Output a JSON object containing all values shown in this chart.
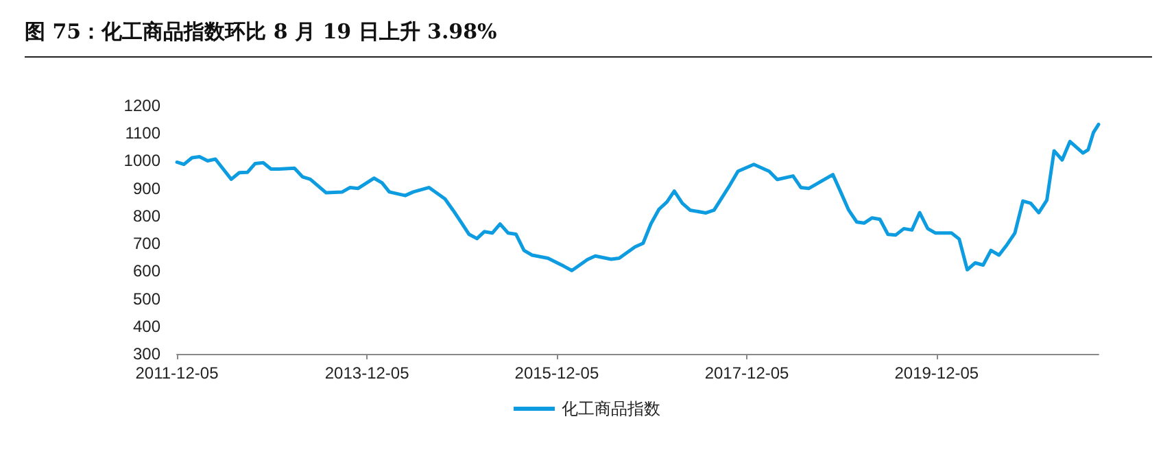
{
  "chart_data": {
    "type": "line",
    "title": "图 75：化工商品指数环比 8 月 19 日上升 3.98%",
    "x": [
      "2011-12-05",
      "2012-01",
      "2012-02",
      "2012-03",
      "2012-04",
      "2012-05",
      "2012-07",
      "2012-08",
      "2012-09",
      "2012-10",
      "2012-11",
      "2012-12",
      "2013-01",
      "2013-03",
      "2013-04",
      "2013-05",
      "2013-07",
      "2013-09",
      "2013-10",
      "2013-11",
      "2014-01",
      "2014-02",
      "2014-03",
      "2014-05",
      "2014-06",
      "2014-08",
      "2014-10",
      "2014-11",
      "2014-12",
      "2015-01",
      "2015-02",
      "2015-03",
      "2015-04",
      "2015-05",
      "2015-06",
      "2015-07",
      "2015-08",
      "2015-09",
      "2015-11",
      "2016-01",
      "2016-02",
      "2016-04",
      "2016-05",
      "2016-07",
      "2016-08",
      "2016-10",
      "2016-11",
      "2016-12",
      "2017-01",
      "2017-02",
      "2017-03",
      "2017-04",
      "2017-05",
      "2017-07",
      "2017-08",
      "2017-10",
      "2017-11",
      "2018-01",
      "2018-03",
      "2018-04",
      "2018-06",
      "2018-07",
      "2018-08",
      "2018-09",
      "2018-11",
      "2018-12",
      "2019-01",
      "2019-02",
      "2019-03",
      "2019-04",
      "2019-05",
      "2019-06",
      "2019-07",
      "2019-08",
      "2019-09",
      "2019-10",
      "2019-11",
      "2019-12",
      "2020-02",
      "2020-03",
      "2020-04",
      "2020-05",
      "2020-06",
      "2020-07",
      "2020-08",
      "2020-09",
      "2020-10",
      "2020-11",
      "2020-12",
      "2021-01",
      "2021-02",
      "2021-03",
      "2021-04",
      "2021-05",
      "2021-06-20",
      "2021-07-10",
      "2021-07-30",
      "2021-08-19"
    ],
    "series": [
      {
        "name": "化工商品指数",
        "color": "#0e9ce0",
        "values": [
          995,
          987,
          1011,
          1015,
          1000,
          1006,
          933,
          957,
          958,
          990,
          993,
          970,
          970,
          973,
          942,
          933,
          884,
          887,
          903,
          900,
          937,
          920,
          887,
          874,
          887,
          903,
          862,
          821,
          779,
          734,
          718,
          743,
          738,
          771,
          738,
          734,
          675,
          658,
          647,
          618,
          602,
          642,
          655,
          643,
          647,
          688,
          701,
          771,
          824,
          851,
          890,
          846,
          821,
          811,
          821,
          912,
          962,
          987,
          962,
          932,
          945,
          903,
          900,
          917,
          950,
          887,
          821,
          778,
          774,
          793,
          788,
          733,
          731,
          754,
          749,
          812,
          754,
          738,
          738,
          716,
          605,
          630,
          622,
          675,
          658,
          696,
          738,
          854,
          846,
          812,
          857,
          1036,
          1003,
          1070,
          1028,
          1040,
          1102,
          1132
        ]
      }
    ],
    "xlim": [
      "2011-12-05",
      "2021-08-19"
    ],
    "xticks": [
      "2011-12-05",
      "2013-12-05",
      "2015-12-05",
      "2017-12-05",
      "2019-12-05"
    ],
    "ylim": [
      300,
      1200
    ],
    "yticks": [
      300,
      400,
      500,
      600,
      700,
      800,
      900,
      1000,
      1100,
      1200
    ],
    "grid": false,
    "legend": "bottom",
    "marker": "none",
    "line_style": "solid"
  }
}
